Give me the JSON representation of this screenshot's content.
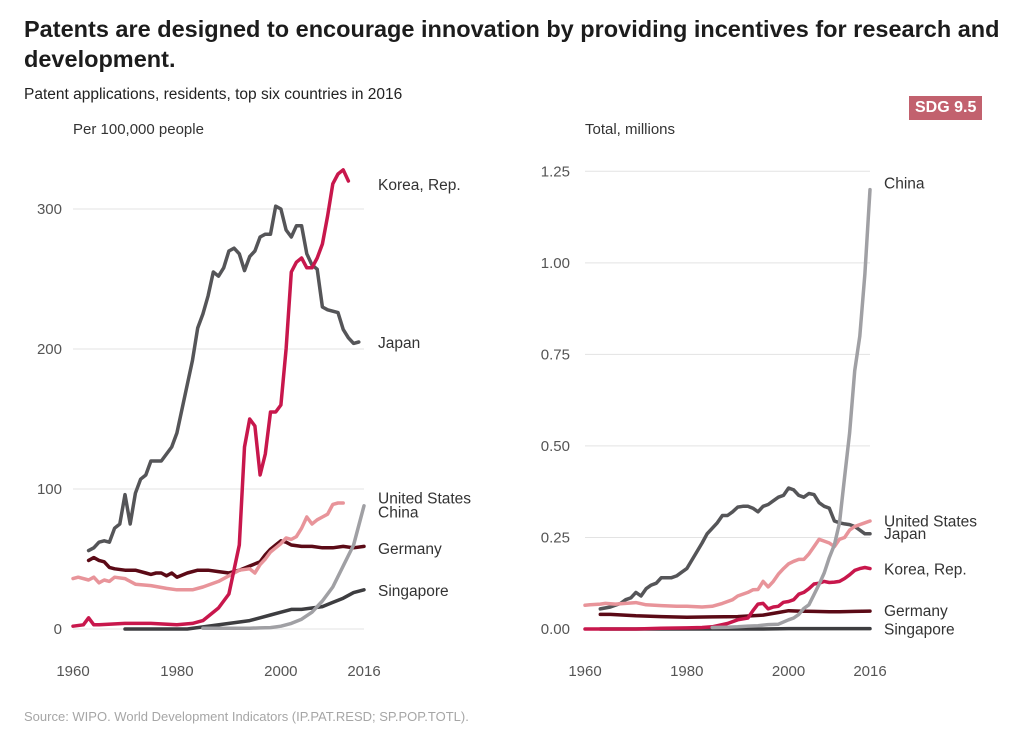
{
  "title": "Patents are designed to encourage innovation by providing incentives for research and development.",
  "subtitle": "Patent applications, residents, top six countries in 2016",
  "badge": "SDG 9.5",
  "source": "Source: WIPO. World Development Indicators (IP.PAT.RESD; SP.POP.TOTL).",
  "colors": {
    "Korea, Rep.": "#c8174c",
    "Japan": "#555558",
    "United States": "#e8949a",
    "China": "#a0a0a4",
    "Germany": "#5b0a16",
    "Singapore": "#3d3d40",
    "grid": "#e3e3e3",
    "axis_text": "#555555"
  },
  "chart_data": [
    {
      "type": "line",
      "ylabel": "Per 100,000 people",
      "xlim": [
        1960,
        2016
      ],
      "ylim": [
        0,
        340
      ],
      "xticks": [
        "1960",
        "1980",
        "2000",
        "2016"
      ],
      "yticks": [
        "0",
        "100",
        "200",
        "300"
      ],
      "grid": true,
      "series": [
        {
          "name": "Korea, Rep.",
          "x": [
            1960,
            1962,
            1963,
            1964,
            1965,
            1970,
            1975,
            1980,
            1983,
            1985,
            1988,
            1990,
            1992,
            1993,
            1994,
            1995,
            1996,
            1997,
            1998,
            1999,
            2000,
            2001,
            2002,
            2003,
            2004,
            2005,
            2006,
            2007,
            2008,
            2009,
            2010,
            2011,
            2012,
            2013,
            2014,
            2015,
            2016
          ],
          "y": [
            2,
            3,
            8,
            3,
            3,
            4,
            4,
            3,
            4,
            6,
            15,
            25,
            60,
            130,
            150,
            145,
            110,
            125,
            155,
            155,
            160,
            200,
            255,
            262,
            265,
            258,
            258,
            265,
            275,
            295,
            318,
            325,
            328,
            320,
            null,
            null,
            null
          ]
        },
        {
          "name": "Japan",
          "x": [
            1963,
            1964,
            1965,
            1966,
            1967,
            1968,
            1969,
            1970,
            1971,
            1972,
            1973,
            1974,
            1975,
            1976,
            1977,
            1978,
            1979,
            1980,
            1983,
            1984,
            1985,
            1986,
            1987,
            1988,
            1989,
            1990,
            1991,
            1992,
            1993,
            1994,
            1995,
            1996,
            1997,
            1998,
            1999,
            2000,
            2001,
            2002,
            2003,
            2004,
            2005,
            2006,
            2007,
            2008,
            2009,
            2010,
            2011,
            2012,
            2013,
            2014,
            2015,
            2016
          ],
          "y": [
            56,
            58,
            62,
            63,
            62,
            72,
            75,
            96,
            75,
            97,
            107,
            110,
            120,
            120,
            120,
            125,
            130,
            140,
            192,
            215,
            225,
            238,
            255,
            252,
            258,
            270,
            272,
            268,
            256,
            266,
            270,
            280,
            282,
            282,
            302,
            300,
            285,
            280,
            288,
            288,
            268,
            260,
            257,
            230,
            228,
            227,
            226,
            214,
            208,
            204,
            205,
            null
          ]
        },
        {
          "name": "United States",
          "x": [
            1960,
            1961,
            1963,
            1964,
            1965,
            1966,
            1967,
            1968,
            1970,
            1972,
            1975,
            1978,
            1980,
            1983,
            1985,
            1988,
            1990,
            1992,
            1994,
            1995,
            1996,
            1997,
            1998,
            1999,
            2000,
            2001,
            2002,
            2003,
            2004,
            2005,
            2006,
            2007,
            2008,
            2009,
            2010,
            2011,
            2012,
            2013,
            2014,
            2015,
            2016
          ],
          "y": [
            36,
            37,
            35,
            37,
            33,
            35,
            34,
            37,
            36,
            32,
            31,
            29,
            28,
            28,
            30,
            34,
            38,
            42,
            43,
            40,
            46,
            50,
            55,
            58,
            61,
            65,
            64,
            66,
            72,
            80,
            75,
            78,
            80,
            82,
            89,
            90,
            90,
            null,
            null,
            null,
            null
          ]
        },
        {
          "name": "China",
          "x": [
            1985,
            1988,
            1990,
            1992,
            1994,
            1996,
            1998,
            2000,
            2002,
            2004,
            2006,
            2008,
            2010,
            2012,
            2014,
            2016
          ],
          "y": [
            0.5,
            0.5,
            0.5,
            0.6,
            0.6,
            0.8,
            1,
            2,
            4,
            7,
            12,
            20,
            30,
            45,
            60,
            88
          ]
        },
        {
          "name": "Germany",
          "x": [
            1963,
            1964,
            1965,
            1966,
            1967,
            1968,
            1970,
            1972,
            1974,
            1975,
            1976,
            1977,
            1978,
            1979,
            1980,
            1982,
            1984,
            1986,
            1988,
            1990,
            1992,
            1994,
            1996,
            1997,
            1998,
            1999,
            2000,
            2001,
            2002,
            2004,
            2006,
            2008,
            2010,
            2012,
            2014,
            2016
          ],
          "y": [
            49,
            51,
            49,
            48,
            44,
            43,
            42,
            42,
            40,
            39,
            40,
            40,
            38,
            40,
            37,
            40,
            42,
            42,
            41,
            40,
            42,
            45,
            48,
            53,
            57,
            60,
            63,
            62,
            60,
            59,
            59,
            58,
            58,
            59,
            58,
            59
          ]
        },
        {
          "name": "Singapore",
          "x": [
            1970,
            1972,
            1980,
            1982,
            1994,
            1996,
            1998,
            2000,
            2002,
            2004,
            2006,
            2008,
            2010,
            2012,
            2014,
            2016
          ],
          "y": [
            0,
            0,
            0,
            0,
            6,
            8,
            10,
            12,
            14,
            14,
            15,
            16,
            19,
            22,
            26,
            28
          ]
        }
      ],
      "labels": [
        {
          "series": "Korea, Rep.",
          "text": "Korea, Rep.",
          "value": 318
        },
        {
          "series": "Japan",
          "text": "Japan",
          "value": 205
        },
        {
          "series": "United States",
          "text": "United States",
          "value": 94
        },
        {
          "series": "China",
          "text": "China",
          "value": 84
        },
        {
          "series": "Germany",
          "text": "Germany",
          "value": 58
        },
        {
          "series": "Singapore",
          "text": "Singapore",
          "value": 28
        }
      ]
    },
    {
      "type": "line",
      "ylabel": "Total, millions",
      "xlim": [
        1960,
        2016
      ],
      "ylim": [
        0,
        1.3
      ],
      "xticks": [
        "1960",
        "1980",
        "2000",
        "2016"
      ],
      "yticks": [
        "0.00",
        "0.25",
        "0.50",
        "0.75",
        "1.00",
        "1.25"
      ],
      "grid": true,
      "series": [
        {
          "name": "China",
          "x": [
            1985,
            1988,
            1990,
            1992,
            1994,
            1996,
            1998,
            2000,
            2001,
            2002,
            2003,
            2004,
            2005,
            2006,
            2007,
            2008,
            2009,
            2010,
            2011,
            2012,
            2013,
            2014,
            2015,
            2016
          ],
          "y": [
            0.004,
            0.005,
            0.006,
            0.008,
            0.009,
            0.012,
            0.013,
            0.025,
            0.03,
            0.04,
            0.056,
            0.066,
            0.094,
            0.122,
            0.153,
            0.195,
            0.23,
            0.29,
            0.415,
            0.535,
            0.705,
            0.8,
            0.97,
            1.2
          ]
        },
        {
          "name": "United States",
          "x": [
            1960,
            1961,
            1963,
            1964,
            1966,
            1968,
            1970,
            1972,
            1975,
            1978,
            1980,
            1983,
            1985,
            1987,
            1989,
            1990,
            1992,
            1993,
            1994,
            1995,
            1996,
            1997,
            1998,
            1999,
            2000,
            2001,
            2002,
            2003,
            2004,
            2005,
            2006,
            2007,
            2008,
            2009,
            2010,
            2011,
            2012,
            2013,
            2014,
            2015,
            2016
          ],
          "y": [
            0.065,
            0.066,
            0.068,
            0.07,
            0.068,
            0.07,
            0.072,
            0.066,
            0.064,
            0.062,
            0.062,
            0.06,
            0.062,
            0.07,
            0.08,
            0.09,
            0.1,
            0.107,
            0.108,
            0.13,
            0.115,
            0.13,
            0.15,
            0.165,
            0.178,
            0.185,
            0.19,
            0.19,
            0.205,
            0.225,
            0.245,
            0.24,
            0.235,
            0.225,
            0.245,
            0.25,
            0.27,
            0.28,
            0.285,
            0.29,
            0.295
          ]
        },
        {
          "name": "Japan",
          "x": [
            1963,
            1965,
            1967,
            1968,
            1969,
            1970,
            1971,
            1972,
            1973,
            1974,
            1975,
            1976,
            1977,
            1978,
            1979,
            1980,
            1983,
            1984,
            1985,
            1986,
            1987,
            1988,
            1989,
            1990,
            1991,
            1992,
            1993,
            1994,
            1995,
            1996,
            1997,
            1998,
            1999,
            2000,
            2001,
            2002,
            2003,
            2004,
            2005,
            2006,
            2007,
            2008,
            2009,
            2010,
            2011,
            2012,
            2013,
            2014,
            2015,
            2016
          ],
          "y": [
            0.055,
            0.06,
            0.07,
            0.08,
            0.085,
            0.1,
            0.09,
            0.11,
            0.12,
            0.125,
            0.14,
            0.14,
            0.14,
            0.145,
            0.155,
            0.165,
            0.235,
            0.26,
            0.275,
            0.29,
            0.31,
            0.31,
            0.32,
            0.333,
            0.335,
            0.335,
            0.33,
            0.32,
            0.335,
            0.34,
            0.35,
            0.36,
            0.365,
            0.385,
            0.38,
            0.365,
            0.36,
            0.37,
            0.367,
            0.345,
            0.335,
            0.33,
            0.295,
            0.29,
            0.287,
            0.285,
            0.28,
            0.27,
            0.26,
            0.26
          ]
        },
        {
          "name": "Korea, Rep.",
          "x": [
            1960,
            1965,
            1970,
            1975,
            1980,
            1983,
            1985,
            1988,
            1990,
            1992,
            1993,
            1994,
            1995,
            1996,
            1997,
            1998,
            1999,
            2000,
            2001,
            2002,
            2003,
            2004,
            2005,
            2006,
            2007,
            2008,
            2009,
            2010,
            2011,
            2012,
            2013,
            2014,
            2015,
            2016
          ],
          "y": [
            0,
            0,
            0,
            0.002,
            0.003,
            0.004,
            0.006,
            0.015,
            0.025,
            0.03,
            0.05,
            0.068,
            0.07,
            0.055,
            0.06,
            0.062,
            0.073,
            0.075,
            0.08,
            0.095,
            0.1,
            0.11,
            0.123,
            0.125,
            0.13,
            0.127,
            0.128,
            0.13,
            0.138,
            0.148,
            0.16,
            0.165,
            0.168,
            0.165
          ]
        },
        {
          "name": "Germany",
          "x": [
            1963,
            1965,
            1970,
            1975,
            1980,
            1985,
            1990,
            1995,
            1998,
            2000,
            2002,
            2005,
            2008,
            2010,
            2013,
            2016
          ],
          "y": [
            0.04,
            0.04,
            0.036,
            0.034,
            0.032,
            0.033,
            0.034,
            0.038,
            0.045,
            0.05,
            0.049,
            0.048,
            0.047,
            0.047,
            0.048,
            0.049
          ]
        },
        {
          "name": "Singapore",
          "x": [
            1963,
            1975,
            1980,
            1985,
            1995,
            2000,
            2005,
            2010,
            2016
          ],
          "y": [
            0.0,
            0.0,
            0.0,
            0.0,
            0.0,
            0.001,
            0.001,
            0.001,
            0.001
          ]
        }
      ],
      "labels": [
        {
          "series": "China",
          "text": "China",
          "value": 1.22
        },
        {
          "series": "United States",
          "text": "United States",
          "value": 0.297
        },
        {
          "series": "Japan",
          "text": "Japan",
          "value": 0.262
        },
        {
          "series": "Korea, Rep.",
          "text": "Korea, Rep.",
          "value": 0.165
        },
        {
          "series": "Germany",
          "text": "Germany",
          "value": 0.052
        },
        {
          "series": "Singapore",
          "text": "Singapore",
          "value": 0.002
        }
      ]
    }
  ]
}
